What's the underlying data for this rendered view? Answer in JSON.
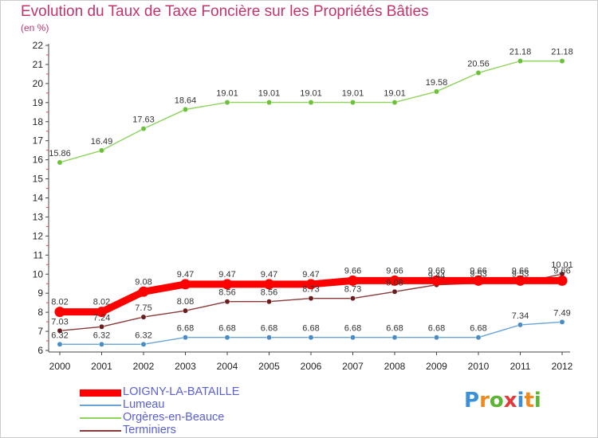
{
  "title": "Evolution du Taux de Taxe Foncière sur les Propriétés Bâties",
  "subtitle": "(en %)",
  "logo": {
    "letters": [
      "P",
      "r",
      "o",
      "x",
      "i",
      "t",
      "i"
    ],
    "colors": [
      "#3a8fd8",
      "#f0891d",
      "#5cb531",
      "#e23a3a",
      "#3a8fd8",
      "#f0891d",
      "#5cb531"
    ]
  },
  "chart_data": {
    "type": "line",
    "title": "Evolution du Taux de Taxe Foncière sur les Propriétés Bâties",
    "ylabel": "(en %)",
    "xlabel": "",
    "x": [
      "2000",
      "2001",
      "2002",
      "2003",
      "2004",
      "2005",
      "2006",
      "2007",
      "2008",
      "2009",
      "2010",
      "2011",
      "2012"
    ],
    "ylim": [
      6,
      22
    ],
    "yticks": [
      6,
      7,
      8,
      9,
      10,
      11,
      12,
      13,
      14,
      15,
      16,
      17,
      18,
      19,
      20,
      21,
      22
    ],
    "grid": false,
    "legend": "bottom-left",
    "series": [
      {
        "name": "Orgères-en-Beauce",
        "color": "#8ed35a",
        "marker_color": "#6cc13a",
        "values": [
          15.86,
          16.49,
          17.63,
          18.64,
          19.01,
          19.01,
          19.01,
          19.01,
          19.01,
          19.58,
          20.56,
          21.18,
          21.18
        ],
        "labels": [
          "15.86",
          "16.49",
          "17.63",
          "18.64",
          "19.01",
          "19.01",
          "19.01",
          "19.01",
          "19.01",
          "19.58",
          "20.56",
          "21.18",
          "21.18"
        ]
      },
      {
        "name": "Terminiers",
        "color": "#8a3a3a",
        "marker_color": "#6b1d1d",
        "values": [
          7.03,
          7.24,
          7.75,
          8.08,
          8.56,
          8.56,
          8.73,
          8.73,
          9.08,
          9.44,
          9.53,
          9.53,
          10.01
        ],
        "labels": [
          "7.03",
          "7.24",
          "7.75",
          "8.08",
          "8.56",
          "8.56",
          "8.73",
          "8.73",
          "9.08",
          "9.44",
          "9.53",
          "9.53",
          "10.01"
        ]
      },
      {
        "name": "Lumeau",
        "color": "#6aa4d6",
        "marker_color": "#4a8cc6",
        "values": [
          6.32,
          6.32,
          6.32,
          6.68,
          6.68,
          6.68,
          6.68,
          6.68,
          6.68,
          6.68,
          6.68,
          7.34,
          7.49
        ],
        "labels": [
          "6.32",
          "6.32",
          "6.32",
          "6.68",
          "6.68",
          "6.68",
          "6.68",
          "6.68",
          "6.68",
          "6.68",
          "6.68",
          "7.34",
          "7.49"
        ]
      },
      {
        "name": "LOIGNY-LA-BATAILLE",
        "color": "#ff0000",
        "marker_color": "#ff0000",
        "values": [
          8.02,
          8.02,
          9.08,
          9.47,
          9.47,
          9.47,
          9.47,
          9.66,
          9.66,
          9.66,
          9.66,
          9.66,
          9.66
        ],
        "labels": [
          "8.02",
          "8.02",
          "9.08",
          "9.47",
          "9.47",
          "9.47",
          "9.47",
          "9.66",
          "9.66",
          "9.66",
          "9.66",
          "9.66",
          "9.66"
        ]
      }
    ]
  },
  "legend_order": [
    "LOIGNY-LA-BATAILLE",
    "Lumeau",
    "Orgères-en-Beauce",
    "Terminiers"
  ]
}
